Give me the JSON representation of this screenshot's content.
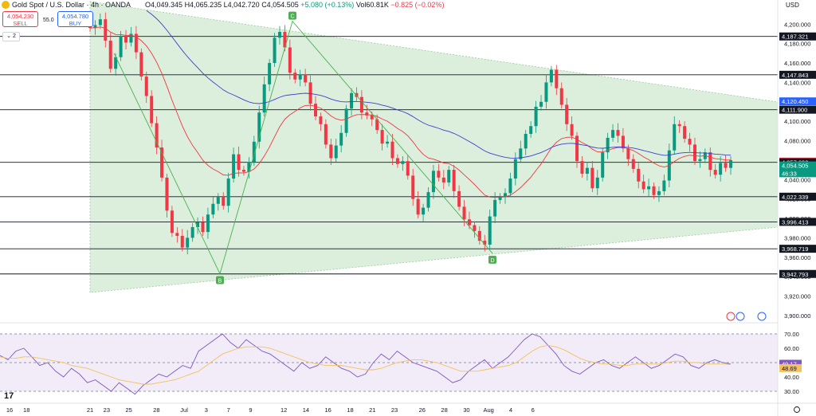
{
  "header": {
    "symbol_title": "Gold Spot / U.S. Dollar · 4h · OANDA",
    "open": "O4,049.345",
    "high": "H4,065.235",
    "low": "L4,042.720",
    "close": "C4,054.505",
    "change": "+5.080 (+0.13%)",
    "volume": "Vol60.81K",
    "volume_change": "−0.825 (−0.02%)"
  },
  "trade": {
    "sell_price": "4,054.230",
    "sell_label": "SELL",
    "spread": "55.0",
    "buy_price": "4,054.780",
    "buy_label": "BUY",
    "collapse_count": "2"
  },
  "currency": "USD",
  "colors": {
    "up": "#089981",
    "down": "#f23645",
    "ma_fast": "#f23645",
    "ma_slow": "#3f3fcf",
    "triangle_fill": "#c8e6c9",
    "rsi": "#7e57c2",
    "rsi_ma": "#f4c15d"
  },
  "chart_data": [
    {
      "type": "candlestick",
      "title": "Gold Spot / U.S. Dollar · 4h · OANDA",
      "y_axis_ticks": [
        "4,200.000",
        "4,180.000",
        "4,160.000",
        "4,140.000",
        "4,120.000",
        "4,100.000",
        "4,080.000",
        "4,060.000",
        "4,040.000",
        "4,020.000",
        "4,000.000",
        "3,980.000",
        "3,960.000",
        "3,940.000",
        "3,920.000",
        "3,900.000"
      ],
      "ylim": [
        3895,
        4215
      ],
      "x_axis_ticks": [
        "16",
        "18",
        "21",
        "23",
        "25",
        "28",
        "Jul",
        "3",
        "7",
        "9",
        "12",
        "14",
        "16",
        "18",
        "21",
        "23",
        "26",
        "28",
        "30",
        "Aug",
        "4",
        "6"
      ],
      "x_tick_index": [
        0,
        4,
        8,
        11,
        15,
        20,
        25,
        29,
        33,
        37,
        43,
        47,
        51,
        55,
        59,
        63,
        68,
        72,
        76,
        80,
        84,
        88
      ],
      "close_path": [
        4196,
        4199,
        4205,
        4183,
        4154,
        4166,
        4188,
        4181,
        4190,
        4171,
        4146,
        4126,
        4098,
        4073,
        4042,
        4008,
        3985,
        3982,
        3970,
        3980,
        3991,
        3996,
        3986,
        4004,
        4015,
        4022,
        4013,
        4041,
        4066,
        4050,
        4048,
        4058,
        4079,
        4109,
        4138,
        4160,
        4186,
        4192,
        4176,
        4150,
        4143,
        4148,
        4140,
        4118,
        4105,
        4097,
        4076,
        4062,
        4075,
        4088,
        4113,
        4129,
        4125,
        4109,
        4106,
        4102,
        4091,
        4077,
        4079,
        4062,
        4056,
        4059,
        4044,
        4020,
        4004,
        4011,
        4027,
        4049,
        4042,
        4037,
        4050,
        4028,
        4012,
        3999,
        3993,
        3987,
        3977,
        3973,
        4002,
        4019,
        4022,
        4026,
        4041,
        4061,
        4072,
        4087,
        4095,
        4115,
        4120,
        4140,
        4153,
        4134,
        4117,
        4097,
        4085,
        4059,
        4046,
        4052,
        4031,
        4042,
        4068,
        4083,
        4091,
        4085,
        4072,
        4061,
        4051,
        4038,
        4030,
        4033,
        4024,
        4028,
        4039,
        4070,
        4097,
        4095,
        4082,
        4076,
        4059,
        4061,
        4068,
        4050,
        4045,
        4057,
        4052,
        4060
      ],
      "series": [
        {
          "name": "MA fast",
          "role": "line",
          "color": "#f23645"
        },
        {
          "name": "MA slow",
          "role": "line",
          "color": "#3f3fcf"
        }
      ],
      "horizontal_levels": [
        4187.321,
        4147.843,
        4111.9,
        4057.692,
        4022.339,
        3996.413,
        3968.719,
        3942.793
      ],
      "price_labels": [
        {
          "text": "4,187.321",
          "value": 4187.321,
          "style": "dark"
        },
        {
          "text": "4,147.843",
          "value": 4147.843,
          "style": "dark"
        },
        {
          "text": "4,120.450",
          "value": 4120.45,
          "style": "blue"
        },
        {
          "text": "4,111.900",
          "value": 4111.9,
          "style": "dark"
        },
        {
          "text": "4,058.432",
          "value": 4058.432,
          "style": "red"
        },
        {
          "text": "4,057.692",
          "value": 4057.692,
          "style": "dark"
        },
        {
          "text": "4,054.505",
          "value": 4054.505,
          "style": "green"
        },
        {
          "text": "46:33",
          "value": 4046.5,
          "style": "green"
        },
        {
          "text": "4,022.339",
          "value": 4022.339,
          "style": "dark"
        },
        {
          "text": "3,996.413",
          "value": 3996.413,
          "style": "dark"
        },
        {
          "text": "3,968.719",
          "value": 3968.719,
          "style": "dark"
        },
        {
          "text": "3,942.793",
          "value": 3942.793,
          "style": "dark"
        }
      ],
      "pattern_points": [
        {
          "label": "B",
          "value": 3943
        },
        {
          "label": "C",
          "value": 4203
        },
        {
          "label": "D",
          "value": 3964
        }
      ]
    },
    {
      "type": "line",
      "title": "RSI",
      "y_axis_ticks": [
        "70.00",
        "60.00",
        "50.00",
        "40.00",
        "30.00"
      ],
      "ylim": [
        25,
        75
      ],
      "band": [
        30,
        70
      ],
      "mid": 50,
      "rsi_last": "49.17",
      "rsi_ma_last": "48.69",
      "series": [
        {
          "name": "RSI",
          "color": "#7e57c2",
          "values": [
            55,
            52,
            58,
            60,
            54,
            48,
            50,
            44,
            40,
            46,
            42,
            36,
            38,
            34,
            30,
            36,
            32,
            28,
            34,
            38,
            42,
            40,
            44,
            48,
            46,
            58,
            62,
            66,
            70,
            64,
            60,
            66,
            62,
            58,
            56,
            52,
            48,
            44,
            50,
            46,
            48,
            54,
            50,
            46,
            44,
            40,
            42,
            50,
            56,
            52,
            58,
            54,
            50,
            48,
            46,
            44,
            40,
            36,
            38,
            44,
            48,
            52,
            46,
            50,
            54,
            60,
            66,
            70,
            68,
            62,
            56,
            48,
            44,
            42,
            46,
            50,
            52,
            48,
            46,
            50,
            54,
            50,
            46,
            48,
            52,
            56,
            54,
            48,
            46,
            50,
            52,
            50,
            49
          ]
        },
        {
          "name": "RSI MA",
          "color": "#f4c15d",
          "values": [
            54,
            53,
            53,
            54,
            54,
            53,
            52,
            51,
            50,
            48,
            47,
            46,
            44,
            42,
            40,
            38,
            37,
            36,
            35,
            35,
            36,
            37,
            38,
            40,
            42,
            44,
            48,
            52,
            56,
            58,
            60,
            61,
            61,
            61,
            60,
            58,
            56,
            54,
            52,
            50,
            49,
            48,
            48,
            48,
            47,
            46,
            45,
            45,
            46,
            48,
            50,
            51,
            52,
            52,
            51,
            50,
            48,
            46,
            44,
            44,
            44,
            45,
            46,
            47,
            48,
            50,
            54,
            58,
            61,
            62,
            61,
            59,
            56,
            53,
            51,
            50,
            49,
            49,
            48,
            48,
            49,
            49,
            49,
            49,
            50,
            51,
            51,
            50,
            50,
            49,
            49,
            49,
            48.7
          ]
        }
      ]
    }
  ]
}
